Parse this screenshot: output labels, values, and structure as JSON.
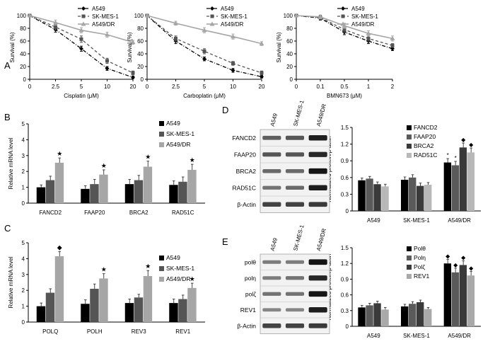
{
  "panels": {
    "A": "A",
    "B": "B",
    "C": "C",
    "D": "D",
    "E": "E"
  },
  "colors": {
    "a549": "#000000",
    "sk": "#555555",
    "dr": "#a6a6a6",
    "blot_bg": "#f2f2f2"
  },
  "chart_data": [
    {
      "id": "A1",
      "type": "line",
      "xlabel": "Cisplatin (μM)",
      "ylabel": "Survival (%)",
      "x_ticks": [
        "0",
        "2.5",
        "5",
        "10",
        "20"
      ],
      "y_ticks": [
        "0",
        "20",
        "40",
        "60",
        "80",
        "100"
      ],
      "ylim": [
        0,
        100
      ],
      "series": [
        {
          "name": "A549",
          "values": [
            100,
            78,
            48,
            17,
            3
          ],
          "errors": [
            0,
            4,
            4,
            3,
            2
          ]
        },
        {
          "name": "SK-MES-1",
          "values": [
            100,
            82,
            63,
            29,
            10
          ],
          "errors": [
            0,
            4,
            5,
            4,
            3
          ]
        },
        {
          "name": "A549/DR",
          "values": [
            100,
            89,
            77,
            70,
            58
          ],
          "errors": [
            0,
            4,
            4,
            4,
            3
          ]
        }
      ]
    },
    {
      "id": "A2",
      "type": "line",
      "xlabel": "Carboplatin (μM)",
      "ylabel": "Survival (%)",
      "x_ticks": [
        "0",
        "2.5",
        "5",
        "10",
        "20"
      ],
      "y_ticks": [
        "0",
        "20",
        "40",
        "60",
        "80",
        "100"
      ],
      "ylim": [
        0,
        100
      ],
      "series": [
        {
          "name": "A549",
          "values": [
            100,
            60,
            32,
            14,
            4
          ],
          "errors": [
            0,
            4,
            3,
            3,
            2
          ]
        },
        {
          "name": "SK-MES-1",
          "values": [
            100,
            64,
            44,
            25,
            10
          ],
          "errors": [
            0,
            4,
            4,
            3,
            3
          ]
        },
        {
          "name": "A549/DR",
          "values": [
            100,
            88,
            77,
            67,
            56
          ],
          "errors": [
            0,
            3,
            4,
            4,
            3
          ]
        }
      ]
    },
    {
      "id": "A3",
      "type": "line",
      "xlabel": "BMN673 (μM)",
      "ylabel": "Survival (%)",
      "x_ticks": [
        "0",
        "0.1",
        "0.5",
        "1",
        "2"
      ],
      "y_ticks": [
        "0",
        "20",
        "40",
        "60",
        "80",
        "100"
      ],
      "ylim": [
        0,
        100
      ],
      "series": [
        {
          "name": "A549",
          "values": [
            100,
            96,
            74,
            60,
            48
          ],
          "errors": [
            0,
            3,
            4,
            4,
            3
          ]
        },
        {
          "name": "SK-MES-1",
          "values": [
            100,
            97,
            78,
            64,
            53
          ],
          "errors": [
            0,
            3,
            4,
            4,
            3
          ]
        },
        {
          "name": "A549/DR",
          "values": [
            100,
            98,
            84,
            72,
            64
          ],
          "errors": [
            0,
            3,
            4,
            4,
            4
          ]
        }
      ]
    },
    {
      "id": "B",
      "type": "bar",
      "ylabel": "Relative mRNA level",
      "categories": [
        "FANCD2",
        "FAAP20",
        "BRCA2",
        "RAD51C"
      ],
      "y_ticks": [
        "0",
        "1",
        "2",
        "3",
        "4",
        "5"
      ],
      "ylim": [
        0,
        5
      ],
      "series": [
        {
          "name": "A549",
          "values": [
            1.0,
            0.9,
            1.2,
            1.15
          ],
          "errors": [
            0.15,
            0.2,
            0.3,
            0.25
          ]
        },
        {
          "name": "SK-MES-1",
          "values": [
            1.45,
            1.2,
            1.45,
            1.35
          ],
          "errors": [
            0.25,
            0.3,
            0.3,
            0.3
          ]
        },
        {
          "name": "A549/DR",
          "values": [
            2.55,
            1.8,
            2.3,
            2.1
          ],
          "errors": [
            0.3,
            0.3,
            0.35,
            0.35
          ]
        }
      ],
      "markers": [
        {
          "category": "FANCD2",
          "symbol": "★"
        },
        {
          "category": "FAAP20",
          "symbol": "★"
        },
        {
          "category": "BRCA2",
          "symbol": "★"
        },
        {
          "category": "RAD51C",
          "symbol": "★"
        }
      ]
    },
    {
      "id": "C",
      "type": "bar",
      "ylabel": "Relative mRNA level",
      "categories": [
        "POLQ",
        "POLH",
        "REV3",
        "REV1"
      ],
      "y_ticks": [
        "0",
        "1",
        "2",
        "3",
        "4",
        "5"
      ],
      "ylim": [
        0,
        5
      ],
      "series": [
        {
          "name": "A549",
          "values": [
            1.0,
            1.15,
            1.2,
            1.2
          ],
          "errors": [
            0.2,
            0.25,
            0.25,
            0.25
          ]
        },
        {
          "name": "SK-MES-1",
          "values": [
            1.85,
            2.1,
            1.55,
            1.45
          ],
          "errors": [
            0.25,
            0.3,
            0.2,
            0.25
          ]
        },
        {
          "name": "A549/DR",
          "values": [
            4.15,
            2.75,
            2.9,
            2.15
          ],
          "errors": [
            0.3,
            0.3,
            0.35,
            0.3
          ]
        }
      ],
      "markers": [
        {
          "category": "POLQ",
          "symbol": "◆"
        },
        {
          "category": "POLH",
          "symbol": "★"
        },
        {
          "category": "REV3",
          "symbol": "★"
        },
        {
          "category": "REV1",
          "symbol": "★"
        }
      ]
    },
    {
      "id": "D",
      "type": "bar",
      "ylabel": "Normalized protein/β-actin",
      "categories": [
        "A549",
        "SK-MES-1",
        "A549/DR"
      ],
      "y_ticks": [
        "0",
        "0.3",
        "0.6",
        "0.9",
        "1.2",
        "1.5"
      ],
      "ylim": [
        0,
        1.5
      ],
      "series": [
        {
          "name": "FANCD2",
          "values": [
            0.55,
            0.56,
            0.87
          ],
          "errors": [
            0.04,
            0.05,
            0.07
          ]
        },
        {
          "name": "FAAP20",
          "values": [
            0.58,
            0.6,
            0.82
          ],
          "errors": [
            0.04,
            0.05,
            0.07
          ]
        },
        {
          "name": "BRCA2",
          "values": [
            0.48,
            0.45,
            1.14
          ],
          "errors": [
            0.04,
            0.05,
            0.08
          ]
        },
        {
          "name": "RAD51C",
          "values": [
            0.44,
            0.47,
            1.05
          ],
          "errors": [
            0.04,
            0.04,
            0.08
          ]
        }
      ],
      "markers": [
        {
          "group": "A549/DR",
          "series": "FANCD2",
          "symbol": "*"
        },
        {
          "group": "A549/DR",
          "series": "FAAP20",
          "symbol": "*"
        },
        {
          "group": "A549/DR",
          "series": "BRCA2",
          "symbol": "◆"
        },
        {
          "group": "A549/DR",
          "series": "RAD51C",
          "symbol": "◆"
        }
      ]
    },
    {
      "id": "E",
      "type": "bar",
      "ylabel": "Normalized protein/β-actin",
      "categories": [
        "A549",
        "SK-MES-1",
        "A549/DR"
      ],
      "y_ticks": [
        "0",
        "0.3",
        "0.6",
        "0.9",
        "1.2",
        "1.5"
      ],
      "ylim": [
        0,
        1.5
      ],
      "series": [
        {
          "name": "Polθ",
          "values": [
            0.36,
            0.38,
            1.2
          ],
          "errors": [
            0.04,
            0.04,
            0.08
          ]
        },
        {
          "name": "Polη",
          "values": [
            0.4,
            0.43,
            1.03
          ],
          "errors": [
            0.04,
            0.04,
            0.08
          ]
        },
        {
          "name": "Polζ",
          "values": [
            0.44,
            0.46,
            1.17
          ],
          "errors": [
            0.04,
            0.04,
            0.08
          ]
        },
        {
          "name": "REV1",
          "values": [
            0.32,
            0.33,
            0.97
          ],
          "errors": [
            0.04,
            0.03,
            0.08
          ]
        }
      ],
      "markers": [
        {
          "group": "A549/DR",
          "series": "Polθ",
          "symbol": "◆"
        },
        {
          "group": "A549/DR",
          "series": "Polη",
          "symbol": "◆"
        },
        {
          "group": "A549/DR",
          "series": "Polζ",
          "symbol": "◆"
        },
        {
          "group": "A549/DR",
          "series": "REV1",
          "symbol": "◆"
        }
      ]
    }
  ],
  "blots": {
    "D": {
      "columns": [
        "A549",
        "SK-MES-1",
        "A549/DR"
      ],
      "rows": [
        "FANCD2",
        "FAAP20",
        "BRCA2",
        "RAD51C",
        "β-Actin"
      ],
      "intensities": [
        [
          0.55,
          0.6,
          0.9
        ],
        [
          0.6,
          0.6,
          0.85
        ],
        [
          0.5,
          0.5,
          0.95
        ],
        [
          0.45,
          0.5,
          0.9
        ],
        [
          0.7,
          0.7,
          0.75
        ]
      ]
    },
    "E": {
      "columns": [
        "A549",
        "SK-MES-1",
        "A549/DR"
      ],
      "rows": [
        "polθ",
        "polη",
        "polζ",
        "REV1",
        "β-Actin"
      ],
      "intensities": [
        [
          0.4,
          0.4,
          0.95
        ],
        [
          0.4,
          0.45,
          0.85
        ],
        [
          0.45,
          0.45,
          0.95
        ],
        [
          0.35,
          0.35,
          0.9
        ],
        [
          0.7,
          0.7,
          0.75
        ]
      ]
    }
  }
}
